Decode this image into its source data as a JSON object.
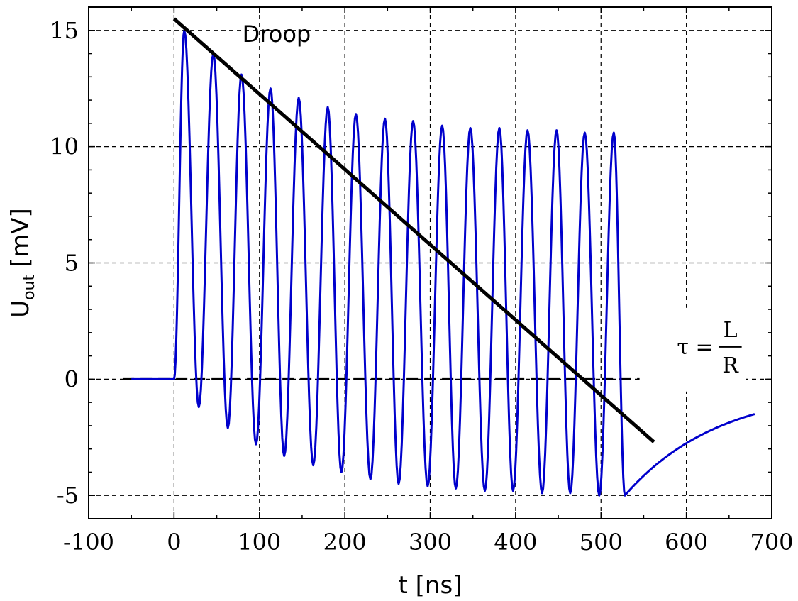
{
  "chart_data": {
    "type": "line",
    "xlabel": "t [ns]",
    "ylabel": {
      "main": "U",
      "sub": "out",
      "unit": " [mV]"
    },
    "xlim": [
      -100,
      700
    ],
    "ylim": [
      -6,
      16
    ],
    "xticks": [
      -100,
      0,
      100,
      200,
      300,
      400,
      500,
      600,
      700
    ],
    "yticks": [
      -5,
      0,
      5,
      10,
      15
    ],
    "grid": true,
    "grid_style": "dashed",
    "series": [
      {
        "role": "signal",
        "color": "#0000cc",
        "pulse_period_ns": 33.5,
        "pulse_start_ns": 0,
        "peaks": [
          {
            "x": 12,
            "y": 15.0
          },
          {
            "x": 46,
            "y": 14.0
          },
          {
            "x": 79,
            "y": 13.1
          },
          {
            "x": 113,
            "y": 12.5
          },
          {
            "x": 146,
            "y": 12.1
          },
          {
            "x": 180,
            "y": 11.7
          },
          {
            "x": 213,
            "y": 11.4
          },
          {
            "x": 247,
            "y": 11.2
          },
          {
            "x": 280,
            "y": 11.1
          },
          {
            "x": 314,
            "y": 10.9
          },
          {
            "x": 347,
            "y": 10.8
          },
          {
            "x": 381,
            "y": 10.8
          },
          {
            "x": 414,
            "y": 10.7
          },
          {
            "x": 448,
            "y": 10.7
          },
          {
            "x": 481,
            "y": 10.6
          },
          {
            "x": 515,
            "y": 10.6
          }
        ],
        "troughs": [
          {
            "x": 29,
            "y": -1.2
          },
          {
            "x": 63,
            "y": -2.1
          },
          {
            "x": 96,
            "y": -2.8
          },
          {
            "x": 129,
            "y": -3.3
          },
          {
            "x": 163,
            "y": -3.7
          },
          {
            "x": 196,
            "y": -4.0
          },
          {
            "x": 230,
            "y": -4.3
          },
          {
            "x": 263,
            "y": -4.5
          },
          {
            "x": 297,
            "y": -4.6
          },
          {
            "x": 330,
            "y": -4.7
          },
          {
            "x": 364,
            "y": -4.8
          },
          {
            "x": 397,
            "y": -4.8
          },
          {
            "x": 431,
            "y": -4.9
          },
          {
            "x": 464,
            "y": -4.9
          },
          {
            "x": 498,
            "y": -5.0
          },
          {
            "x": 528,
            "y": -5.0
          }
        ],
        "baseline_before": {
          "x0": -50,
          "x1": 0,
          "y": 0
        },
        "recovery": {
          "x0": 528,
          "y0": -5.0,
          "x1": 680,
          "y1": -1.5
        }
      },
      {
        "role": "zero-line",
        "color": "#000000",
        "style": "dashed",
        "x": [
          -60,
          590
        ],
        "y": [
          0,
          0
        ]
      },
      {
        "role": "droop-line",
        "color": "#000000",
        "x": [
          0,
          562
        ],
        "y": [
          15.5,
          -2.7
        ]
      }
    ],
    "annotations": [
      {
        "text": "Droop",
        "x": 80,
        "y": 14.5
      },
      {
        "formula": {
          "lhs": "τ =",
          "num": "L",
          "den": "R"
        },
        "x": 595,
        "y": 2.0
      }
    ]
  }
}
